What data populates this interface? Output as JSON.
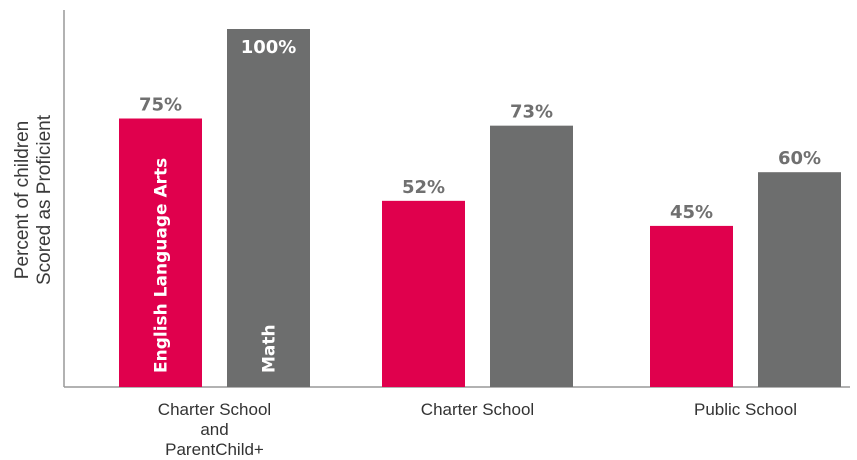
{
  "chart_data": {
    "type": "bar",
    "categories": [
      [
        "Charter School",
        "and",
        "ParentChild+"
      ],
      [
        "Charter School"
      ],
      [
        "Public School"
      ]
    ],
    "series": [
      {
        "name": "English Language Arts",
        "values": [
          75,
          52,
          45
        ],
        "color": "#e0004d"
      },
      {
        "name": "Math",
        "values": [
          100,
          73,
          60
        ],
        "color": "#6d6e6e"
      }
    ],
    "value_suffix": "%",
    "ylabel": [
      "Percent of children",
      "Scored as Proficient"
    ],
    "xlabel": "",
    "ylim": [
      0,
      100
    ],
    "grid": false,
    "legend": "inside first group bars"
  }
}
